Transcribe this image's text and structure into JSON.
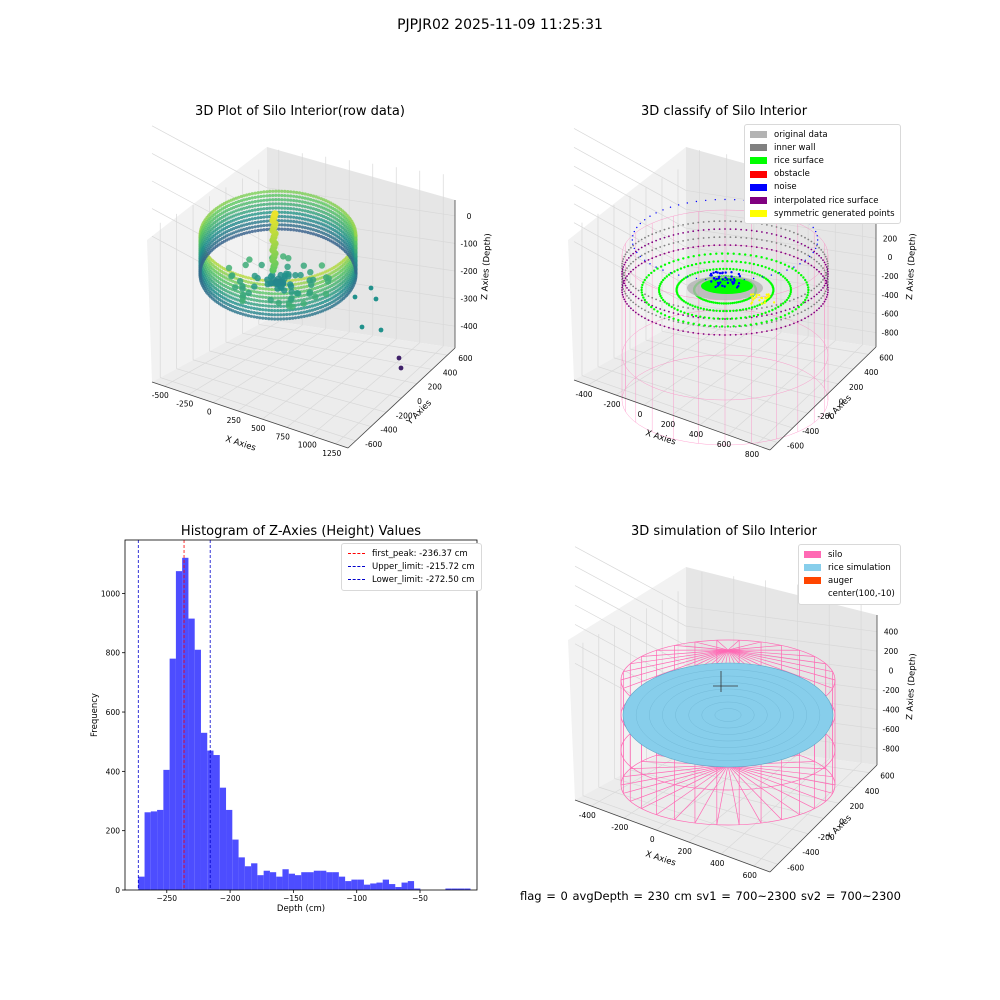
{
  "suptitle": "PJPJR02 2025-11-09 11:25:31",
  "footer": "flag = 0    avgDepth = 230 cm  sv1 = 700~2300  sv2 = 700~2300",
  "chart_data": [
    {
      "type": "scatter",
      "title": "3D Plot of Silo Interior(row data)",
      "xlabel": "X Axies",
      "ylabel": "Y Axies",
      "zlabel": "Z Axies (Depth)",
      "x_ticks": [
        "-500",
        "-250",
        "0",
        "250",
        "500",
        "750",
        "1000",
        "1250"
      ],
      "y_ticks": [
        "-600",
        "-400",
        "-200",
        "0",
        "200",
        "400",
        "600"
      ],
      "z_ticks": [
        "0",
        "-100",
        "-200",
        "-300",
        "-400"
      ],
      "colormap": "viridis"
    },
    {
      "type": "scatter",
      "title": "3D classify of Silo Interior",
      "xlabel": "X Axies",
      "ylabel": "Y Axies",
      "zlabel": "Z Axies (Depth)",
      "x_ticks": [
        "-400",
        "-200",
        "0",
        "200",
        "400",
        "600",
        "800"
      ],
      "y_ticks": [
        "-600",
        "-400",
        "-200",
        "0",
        "200",
        "400",
        "600"
      ],
      "z_ticks": [
        "400",
        "200",
        "0",
        "-200",
        "-400",
        "-600",
        "-800"
      ],
      "legend": [
        {
          "label": "original data",
          "color": "#b3b3b3"
        },
        {
          "label": "inner wall",
          "color": "#808080"
        },
        {
          "label": "rice surface",
          "color": "#00ff00"
        },
        {
          "label": "obstacle",
          "color": "#ff0000"
        },
        {
          "label": "noise",
          "color": "#0000ff"
        },
        {
          "label": "interpolated rice surface",
          "color": "#800080"
        },
        {
          "label": "symmetric generated points",
          "color": "#ffff00"
        }
      ]
    },
    {
      "type": "bar",
      "title": "Histogram of Z-Axies (Height) Values",
      "xlabel": "Depth (cm)",
      "ylabel": "Frequency",
      "xlim": [
        -283,
        -5
      ],
      "ylim": [
        0,
        1180
      ],
      "x_ticks": [
        -250,
        -200,
        -150,
        -100,
        -50
      ],
      "y_ticks": [
        0,
        200,
        400,
        600,
        800,
        1000
      ],
      "bin_start": -272.5,
      "bin_width": 4.95,
      "values": [
        45,
        262,
        265,
        270,
        405,
        780,
        1075,
        1120,
        915,
        810,
        530,
        470,
        455,
        345,
        270,
        170,
        110,
        80,
        90,
        50,
        65,
        60,
        45,
        70,
        55,
        50,
        60,
        60,
        65,
        65,
        60,
        60,
        45,
        30,
        35,
        35,
        18,
        22,
        25,
        35,
        20,
        10,
        25,
        30,
        5,
        0,
        0,
        0,
        0,
        5,
        5,
        5,
        5,
        0,
        0
      ],
      "bar_color": "#4d4dff",
      "lines": [
        {
          "label": "first_peak: -236.37 cm",
          "x": -236.37,
          "color": "#ff0000"
        },
        {
          "label": "Upper_limit: -215.72 cm",
          "x": -215.72,
          "color": "#0000cc"
        },
        {
          "label": "Lower_limit: -272.50 cm",
          "x": -272.5,
          "color": "#0000cc"
        }
      ],
      "legend_position": "upper right"
    },
    {
      "type": "scatter",
      "title": "3D simulation of Silo Interior",
      "xlabel": "X Axies",
      "ylabel": "Y Axies",
      "zlabel": "Z Axies (Depth)",
      "x_ticks": [
        "-400",
        "-200",
        "0",
        "200",
        "400",
        "600"
      ],
      "y_ticks": [
        "-600",
        "-400",
        "-200",
        "0",
        "200",
        "400",
        "600"
      ],
      "z_ticks": [
        "400",
        "200",
        "0",
        "-200",
        "-400",
        "-600",
        "-800"
      ],
      "legend": [
        {
          "label": "silo",
          "color": "#ff69b4"
        },
        {
          "label": "rice simulation",
          "color": "#87ceeb"
        },
        {
          "label": "auger",
          "color": "#ff4500"
        },
        {
          "label": "center(100,-10)",
          "color": ""
        }
      ]
    }
  ]
}
